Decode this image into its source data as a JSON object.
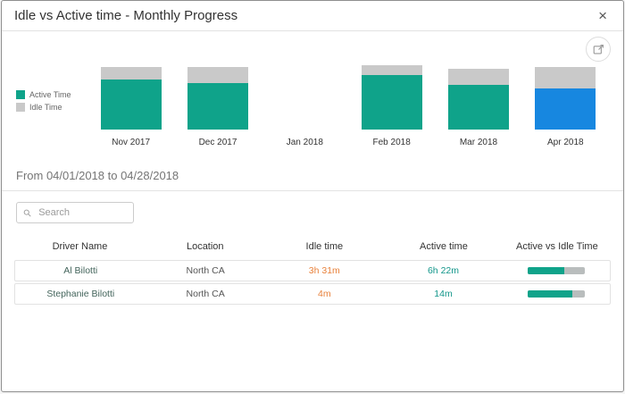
{
  "dialog": {
    "title": "Idle vs Active time - Monthly Progress",
    "close_glyph": "×"
  },
  "colors": {
    "active_teal": "#0FA38A",
    "idle_gray": "#C9C9C9",
    "highlight_blue": "#1787E0",
    "idle_text": "#E8823C",
    "active_text": "#12968A",
    "driver_text": "#44655C",
    "progress_bg": "#B9BDBD"
  },
  "chart_data": {
    "type": "bar",
    "stacked": true,
    "title": "Idle vs Active time - Monthly Progress",
    "categories": [
      "Nov 2017",
      "Dec 2017",
      "Jan 2018",
      "Feb 2018",
      "Mar 2018",
      "Apr 2018"
    ],
    "series": [
      {
        "name": "Active Time",
        "color": "#0FA38A",
        "values": [
          56,
          52,
          0,
          61,
          50,
          46
        ]
      },
      {
        "name": "Idle Time",
        "color": "#C9C9C9",
        "values": [
          14,
          18,
          0,
          11,
          18,
          24
        ]
      }
    ],
    "unit": "relative-height-px (no value axis shown)",
    "highlight": {
      "category": "Apr 2018",
      "active_color": "#1787E0"
    },
    "legend_position": "left",
    "axes": "none",
    "grid": false
  },
  "filter": {
    "date_range": "From 04/01/2018 to 04/28/2018"
  },
  "search": {
    "placeholder": "Search"
  },
  "table": {
    "headers": [
      "Driver Name",
      "Location",
      "Idle time",
      "Active time",
      "Active vs Idle Time"
    ],
    "rows": [
      {
        "driver": "Al Bilotti",
        "location": "North CA",
        "idle": "3h 31m",
        "active": "6h 22m",
        "active_pct": 64
      },
      {
        "driver": "Stephanie Bilotti",
        "location": "North CA",
        "idle": "4m",
        "active": "14m",
        "active_pct": 78
      }
    ]
  }
}
